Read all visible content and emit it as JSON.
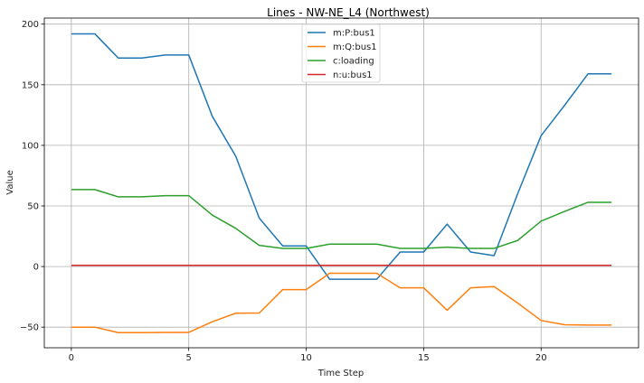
{
  "chart_data": {
    "type": "line",
    "title": "Lines - NW-NE_L4 (Northwest)",
    "xlabel": "Time Step",
    "ylabel": "Value",
    "xlim": [
      -1.15,
      24.15
    ],
    "ylim": [
      -67,
      205
    ],
    "xticks": [
      0,
      5,
      10,
      15,
      20
    ],
    "yticks": [
      -50,
      0,
      50,
      100,
      150,
      200
    ],
    "grid": true,
    "legend_position": "top-center",
    "x": [
      0,
      1,
      2,
      3,
      4,
      5,
      6,
      7,
      8,
      9,
      10,
      11,
      12,
      13,
      14,
      15,
      16,
      17,
      18,
      19,
      20,
      21,
      22,
      23
    ],
    "series": [
      {
        "name": "m:P:bus1",
        "color": "#1f77b4",
        "values": [
          192,
          192,
          172,
          172,
          174.5,
          174.5,
          124,
          91,
          40,
          17,
          17,
          -10.5,
          -10.5,
          -10.5,
          12,
          12,
          35,
          12,
          9,
          60,
          108,
          133,
          159,
          159
        ]
      },
      {
        "name": "m:Q:bus1",
        "color": "#ff7f0e",
        "values": [
          -50,
          -50,
          -54.5,
          -54.5,
          -54.3,
          -54.3,
          -45.5,
          -38.5,
          -38.3,
          -19,
          -19,
          -5.5,
          -5.5,
          -5.5,
          -17.5,
          -17.5,
          -36,
          -17.5,
          -16.5,
          -30,
          -44.5,
          -48,
          -48.3,
          -48.3
        ]
      },
      {
        "name": "c:loading",
        "color": "#2ca02c",
        "values": [
          63.5,
          63.5,
          57.5,
          57.5,
          58.5,
          58.5,
          42.5,
          31.5,
          17.5,
          15,
          15,
          18.5,
          18.5,
          18.5,
          15,
          15,
          16,
          15,
          15,
          21.5,
          37.5,
          45.5,
          53,
          53
        ]
      },
      {
        "name": "n:u:bus1",
        "color": "#d62728",
        "values": [
          1,
          1,
          1,
          1,
          1,
          1,
          1,
          1,
          1,
          1,
          1,
          1,
          1,
          1,
          1,
          1,
          1,
          1,
          1,
          1,
          1,
          1,
          1,
          1
        ]
      }
    ]
  }
}
